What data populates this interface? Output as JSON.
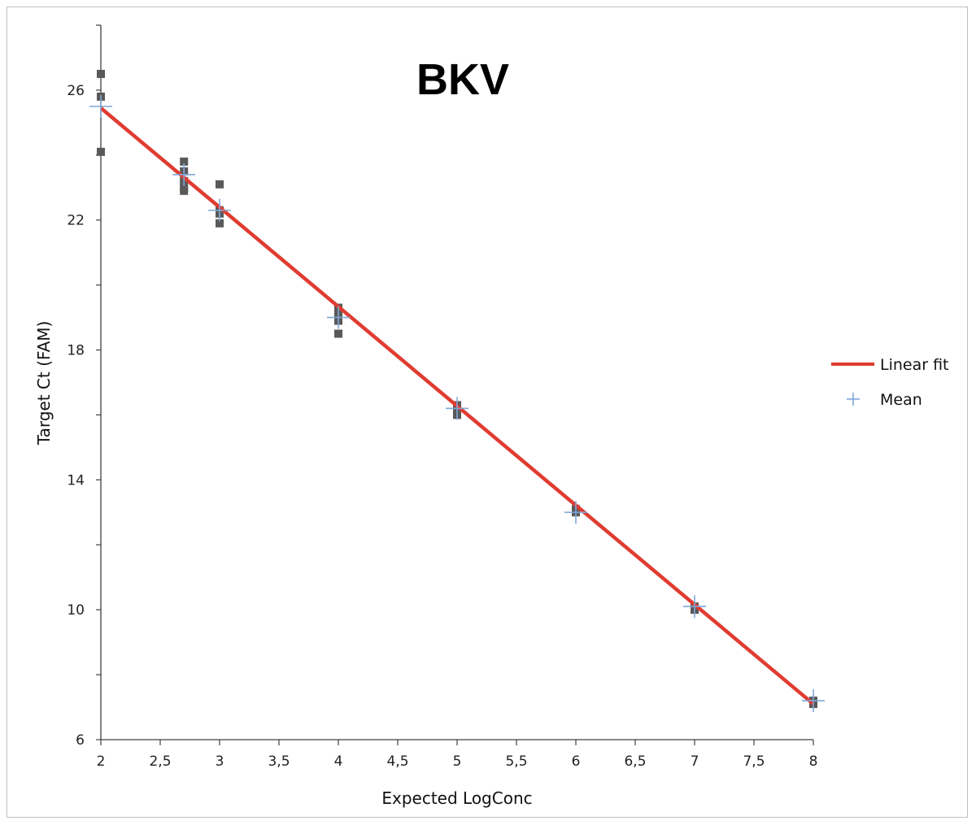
{
  "chart_data": {
    "type": "scatter",
    "title": "BKV",
    "xlabel": "Expected LogConc",
    "ylabel": "Target Ct (FAM)",
    "xlim": [
      2,
      8
    ],
    "ylim": [
      6,
      28
    ],
    "x_ticks": [
      "2",
      "2,5",
      "3",
      "3,5",
      "4",
      "4,5",
      "5",
      "5,5",
      "6",
      "6,5",
      "7",
      "7,5",
      "8"
    ],
    "x_tick_values": [
      2,
      2.5,
      3,
      3.5,
      4,
      4.5,
      5,
      5.5,
      6,
      6.5,
      7,
      7.5,
      8
    ],
    "y_ticks": [
      "6",
      "10",
      "14",
      "18",
      "22",
      "26"
    ],
    "y_tick_values": [
      6,
      10,
      14,
      18,
      22,
      26
    ],
    "grid": false,
    "legend_position": "right",
    "series": [
      {
        "name": "Linear fit",
        "kind": "line",
        "color": "#e03c31",
        "x": [
          2,
          8
        ],
        "y": [
          25.45,
          7.1
        ]
      },
      {
        "name": "Mean",
        "kind": "marker-plus",
        "color": "#7fa7d9",
        "x": [
          2,
          2.7,
          3,
          4,
          5,
          6,
          7,
          8
        ],
        "y": [
          25.5,
          23.4,
          22.3,
          19.0,
          16.2,
          13.0,
          10.1,
          7.2
        ]
      },
      {
        "kind": "marker-square",
        "color": "#595959",
        "x": [
          2,
          2,
          2,
          2.7,
          2.7,
          2.7,
          2.7,
          2.7,
          3,
          3,
          3,
          3,
          4,
          4,
          4,
          4,
          4,
          5,
          5,
          5,
          6,
          6,
          7,
          7,
          8,
          8
        ],
        "y": [
          26.5,
          25.8,
          24.1,
          23.8,
          23.5,
          23.2,
          23.0,
          22.9,
          23.1,
          22.3,
          22.2,
          21.9,
          19.3,
          19.2,
          19.1,
          18.9,
          18.5,
          16.3,
          16.1,
          16.0,
          13.1,
          13.0,
          10.1,
          10.0,
          7.2,
          7.1
        ]
      }
    ]
  }
}
